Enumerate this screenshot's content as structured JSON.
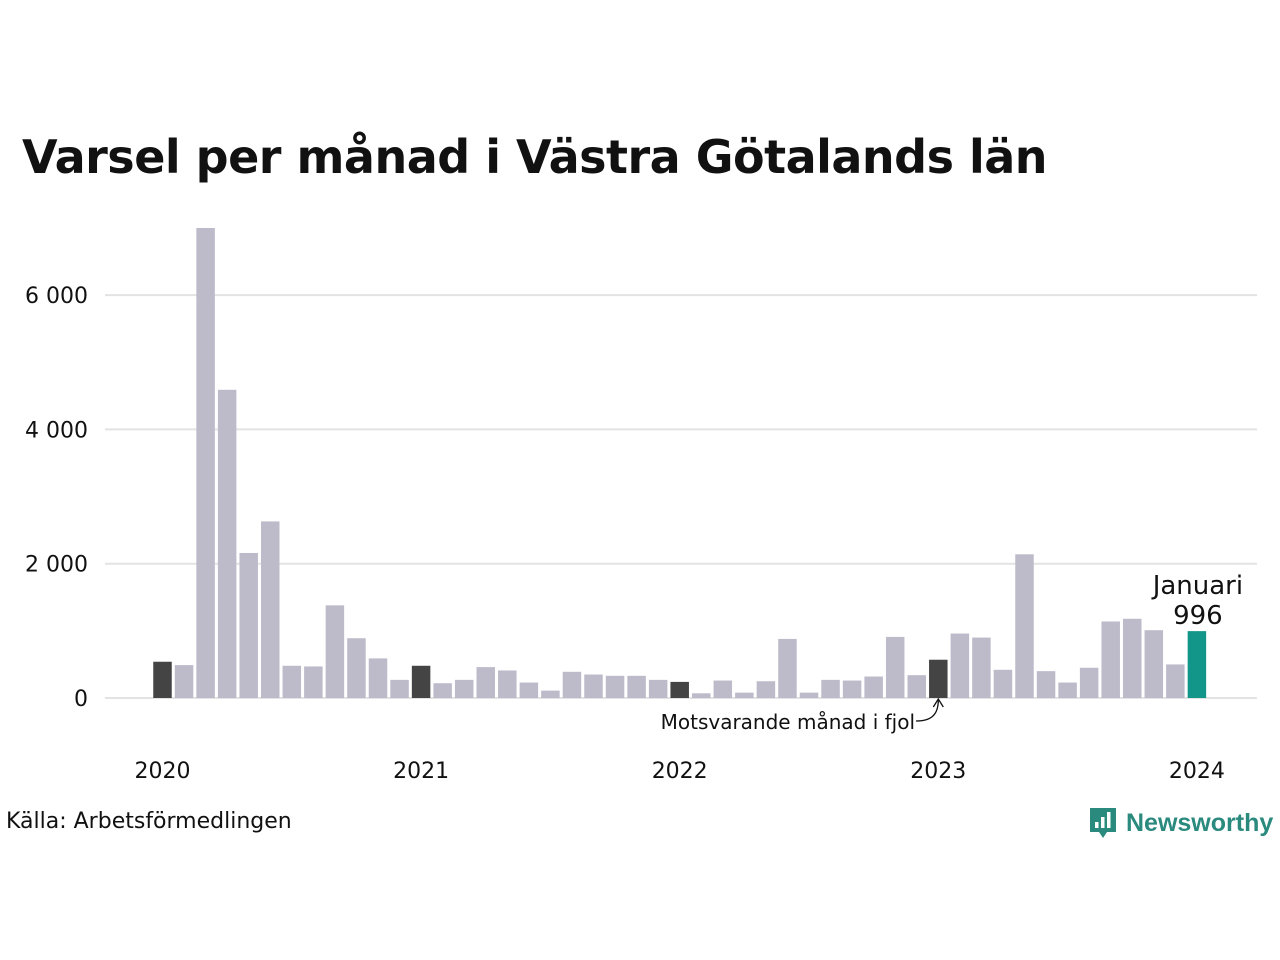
{
  "chart_data": {
    "type": "bar",
    "title": "Varsel per månad i Västra Götalands län",
    "ylim": [
      0,
      7000
    ],
    "y_ticks": [
      0,
      2000,
      4000,
      6000
    ],
    "y_tick_labels": [
      "0",
      "2 000",
      "4 000",
      "6 000"
    ],
    "x_tick_labels": [
      "2020",
      "2021",
      "2022",
      "2023",
      "2024"
    ],
    "x_tick_months": [
      "2020-01",
      "2021-01",
      "2022-01",
      "2023-01",
      "2024-01"
    ],
    "grid": true,
    "categories": [
      "2020-01",
      "2020-02",
      "2020-03",
      "2020-04",
      "2020-05",
      "2020-06",
      "2020-07",
      "2020-08",
      "2020-09",
      "2020-10",
      "2020-11",
      "2020-12",
      "2021-01",
      "2021-02",
      "2021-03",
      "2021-04",
      "2021-05",
      "2021-06",
      "2021-07",
      "2021-08",
      "2021-09",
      "2021-10",
      "2021-11",
      "2021-12",
      "2022-01",
      "2022-02",
      "2022-03",
      "2022-04",
      "2022-05",
      "2022-06",
      "2022-07",
      "2022-08",
      "2022-09",
      "2022-10",
      "2022-11",
      "2022-12",
      "2023-01",
      "2023-02",
      "2023-03",
      "2023-04",
      "2023-05",
      "2023-06",
      "2023-07",
      "2023-08",
      "2023-09",
      "2023-10",
      "2023-11",
      "2023-12",
      "2024-01"
    ],
    "values": [
      540,
      490,
      7000,
      4590,
      2160,
      2630,
      480,
      470,
      1380,
      890,
      590,
      270,
      480,
      220,
      270,
      460,
      410,
      230,
      110,
      390,
      350,
      330,
      330,
      270,
      240,
      70,
      260,
      80,
      250,
      880,
      80,
      270,
      260,
      320,
      910,
      340,
      570,
      960,
      900,
      420,
      2140,
      400,
      230,
      450,
      1140,
      1180,
      1010,
      500,
      996
    ],
    "colors": {
      "default": "#bdbbca",
      "same_month": "#444444",
      "current": "#13968a"
    },
    "same_month_indices": [
      0,
      12,
      24,
      36
    ],
    "current_index": 48,
    "annotations": {
      "current_label": "Januari",
      "current_value": "996",
      "same_month_note": "Motsvarande månad i fjol"
    }
  },
  "footer": {
    "source": "Källa: Arbetsförmedlingen",
    "brand": "Newsworthy"
  },
  "colors": {
    "grid": "#e3e3e3",
    "brand": "#2a8a7e"
  }
}
